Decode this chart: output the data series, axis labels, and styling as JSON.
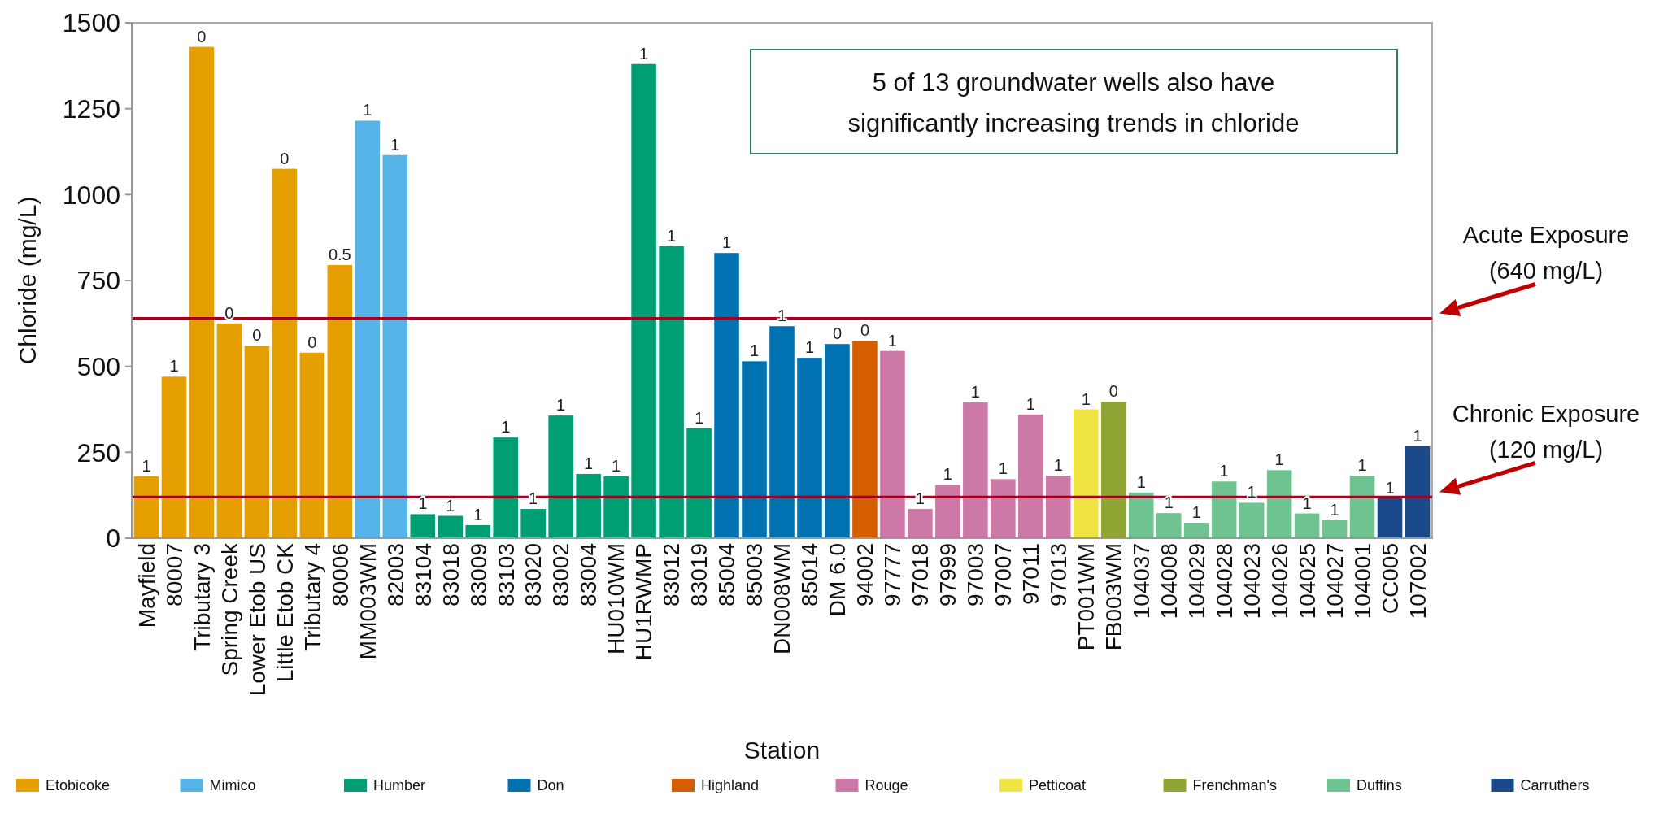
{
  "chart_data": {
    "type": "bar",
    "xlabel": "Station",
    "ylabel": "Chloride (mg/L)",
    "categories": [
      "Mayfield",
      "80007",
      "Tributary 3",
      "Spring Creek",
      "Lower Etob US",
      "Little Etob CK",
      "Tributary 4",
      "80006",
      "MM003WM",
      "82003",
      "83104",
      "83018",
      "83009",
      "83103",
      "83020",
      "83002",
      "83004",
      "HU010WM",
      "HU1RWMP",
      "83012",
      "83019",
      "85004",
      "85003",
      "DN008WM",
      "85014",
      "DM 6.0",
      "94002",
      "97777",
      "97018",
      "97999",
      "97003",
      "97007",
      "97011",
      "97013",
      "PT001WM",
      "FB003WM",
      "104037",
      "104008",
      "104029",
      "104028",
      "104023",
      "104026",
      "104025",
      "104027",
      "104001",
      "CC005",
      "107002"
    ],
    "series": [
      {
        "name": "Etobicoke",
        "color": "#e69f00",
        "values": [
          180,
          470,
          1430,
          625,
          560,
          1075,
          540,
          795,
          null,
          null,
          null,
          null,
          null,
          null,
          null,
          null,
          null,
          null,
          null,
          null,
          null,
          null,
          null,
          null,
          null,
          null,
          null,
          null,
          null,
          null,
          null,
          null,
          null,
          null,
          null,
          null,
          null,
          null,
          null,
          null,
          null,
          null,
          null,
          null,
          null,
          null,
          null
        ]
      },
      {
        "name": "Mimico",
        "color": "#56b4e9",
        "values": [
          null,
          null,
          null,
          null,
          null,
          null,
          null,
          null,
          1215,
          1115,
          null,
          null,
          null,
          null,
          null,
          null,
          null,
          null,
          null,
          null,
          null,
          null,
          null,
          null,
          null,
          null,
          null,
          null,
          null,
          null,
          null,
          null,
          null,
          null,
          null,
          null,
          null,
          null,
          null,
          null,
          null,
          null,
          null,
          null,
          null,
          null,
          null
        ]
      },
      {
        "name": "Humber",
        "color": "#009e73",
        "values": [
          null,
          null,
          null,
          null,
          null,
          null,
          null,
          null,
          null,
          null,
          70,
          65,
          38,
          293,
          85,
          357,
          187,
          180,
          1380,
          850,
          320,
          null,
          null,
          null,
          null,
          null,
          null,
          null,
          null,
          null,
          null,
          null,
          null,
          null,
          null,
          null,
          null,
          null,
          null,
          null,
          null,
          null,
          null,
          null,
          null,
          null,
          null
        ]
      },
      {
        "name": "Don",
        "color": "#0072b2",
        "values": [
          null,
          null,
          null,
          null,
          null,
          null,
          null,
          null,
          null,
          null,
          null,
          null,
          null,
          null,
          null,
          null,
          null,
          null,
          null,
          null,
          null,
          830,
          515,
          617,
          525,
          565,
          null,
          null,
          null,
          null,
          null,
          null,
          null,
          null,
          null,
          null,
          null,
          null,
          null,
          null,
          null,
          null,
          null,
          null,
          null,
          null,
          null
        ]
      },
      {
        "name": "Highland",
        "color": "#d55e00",
        "values": [
          null,
          null,
          null,
          null,
          null,
          null,
          null,
          null,
          null,
          null,
          null,
          null,
          null,
          null,
          null,
          null,
          null,
          null,
          null,
          null,
          null,
          null,
          null,
          null,
          null,
          null,
          575,
          null,
          null,
          null,
          null,
          null,
          null,
          null,
          null,
          null,
          null,
          null,
          null,
          null,
          null,
          null,
          null,
          null,
          null,
          null,
          null
        ]
      },
      {
        "name": "Rouge",
        "color": "#cc79a7",
        "values": [
          null,
          null,
          null,
          null,
          null,
          null,
          null,
          null,
          null,
          null,
          null,
          null,
          null,
          null,
          null,
          null,
          null,
          null,
          null,
          null,
          null,
          null,
          null,
          null,
          null,
          null,
          null,
          545,
          85,
          155,
          395,
          172,
          360,
          182,
          null,
          null,
          null,
          null,
          null,
          null,
          null,
          null,
          null,
          null,
          null,
          null,
          null
        ]
      },
      {
        "name": "Petticoat",
        "color": "#f0e442",
        "values": [
          null,
          null,
          null,
          null,
          null,
          null,
          null,
          null,
          null,
          null,
          null,
          null,
          null,
          null,
          null,
          null,
          null,
          null,
          null,
          null,
          null,
          null,
          null,
          null,
          null,
          null,
          null,
          null,
          null,
          null,
          null,
          null,
          null,
          null,
          375,
          null,
          null,
          null,
          null,
          null,
          null,
          null,
          null,
          null,
          null,
          null,
          null
        ]
      },
      {
        "name": "Frenchman's",
        "color": "#8fa634",
        "values": [
          null,
          null,
          null,
          null,
          null,
          null,
          null,
          null,
          null,
          null,
          null,
          null,
          null,
          null,
          null,
          null,
          null,
          null,
          null,
          null,
          null,
          null,
          null,
          null,
          null,
          null,
          null,
          null,
          null,
          null,
          null,
          null,
          null,
          null,
          null,
          397,
          null,
          null,
          null,
          null,
          null,
          null,
          null,
          null,
          null,
          null,
          null
        ]
      },
      {
        "name": "Duffins",
        "color": "#6fc390",
        "values": [
          null,
          null,
          null,
          null,
          null,
          null,
          null,
          null,
          null,
          null,
          null,
          null,
          null,
          null,
          null,
          null,
          null,
          null,
          null,
          null,
          null,
          null,
          null,
          null,
          null,
          null,
          null,
          null,
          null,
          null,
          null,
          null,
          null,
          null,
          null,
          null,
          133,
          73,
          45,
          165,
          103,
          198,
          72,
          52,
          182,
          null,
          null
        ]
      },
      {
        "name": "Carruthers",
        "color": "#1a4a8a",
        "values": [
          null,
          null,
          null,
          null,
          null,
          null,
          null,
          null,
          null,
          null,
          null,
          null,
          null,
          null,
          null,
          null,
          null,
          null,
          null,
          null,
          null,
          null,
          null,
          null,
          null,
          null,
          null,
          null,
          null,
          null,
          null,
          null,
          null,
          null,
          null,
          null,
          null,
          null,
          null,
          null,
          null,
          null,
          null,
          null,
          null,
          117,
          268
        ]
      }
    ],
    "ylim": [
      0,
      1500
    ],
    "yticks": [
      0,
      250,
      500,
      750,
      1000,
      1250,
      1500
    ],
    "ref_lines": [
      {
        "axis": "y",
        "value": 640,
        "label": "Acute Exposure (640 mg/L)",
        "color": "#a50021"
      },
      {
        "axis": "y",
        "value": 120,
        "label": "Chronic Exposure (120 mg/L)",
        "color": "#a50021"
      }
    ],
    "annotations": [
      "5 of 13 groundwater wells also have significantly increasing trends in chloride",
      {
        "text": "1",
        "x": "Mayfield",
        "y": 180
      },
      {
        "text": "1",
        "x": "80007",
        "y": 470
      },
      {
        "text": "0",
        "x": "Tributary 3",
        "y": 1430
      },
      {
        "text": "0",
        "x": "Spring Creek",
        "y": 625
      },
      {
        "text": "0",
        "x": "Lower Etob US",
        "y": 560
      },
      {
        "text": "0",
        "x": "Little Etob CK",
        "y": 1075
      },
      {
        "text": "0",
        "x": "Tributary 4",
        "y": 540
      },
      {
        "text": "0.5",
        "x": "80006",
        "y": 795
      },
      {
        "text": "1",
        "x": "MM003WM",
        "y": 1215
      },
      {
        "text": "1",
        "x": "82003",
        "y": 1115
      },
      {
        "text": "1",
        "x": "83104",
        "y": 70
      },
      {
        "text": "1",
        "x": "83018",
        "y": 65
      },
      {
        "text": "1",
        "x": "83009",
        "y": 38
      },
      {
        "text": "1",
        "x": "83103",
        "y": 293
      },
      {
        "text": "1",
        "x": "83020",
        "y": 85
      },
      {
        "text": "1",
        "x": "83002",
        "y": 357
      },
      {
        "text": "1",
        "x": "83004",
        "y": 187
      },
      {
        "text": "1",
        "x": "HU010WM",
        "y": 180
      },
      {
        "text": "1",
        "x": "HU1RWMP",
        "y": 1380
      },
      {
        "text": "1",
        "x": "83012",
        "y": 850
      },
      {
        "text": "1",
        "x": "83019",
        "y": 320
      },
      {
        "text": "1",
        "x": "85004",
        "y": 830
      },
      {
        "text": "1",
        "x": "85003",
        "y": 515
      },
      {
        "text": "1",
        "x": "DN008WM",
        "y": 617
      },
      {
        "text": "1",
        "x": "85014",
        "y": 525
      },
      {
        "text": "0",
        "x": "DM 6.0",
        "y": 565
      },
      {
        "text": "0",
        "x": "94002",
        "y": 575
      },
      {
        "text": "1",
        "x": "97777",
        "y": 545
      },
      {
        "text": "1",
        "x": "97018",
        "y": 85
      },
      {
        "text": "1",
        "x": "97999",
        "y": 155
      },
      {
        "text": "1",
        "x": "97003",
        "y": 395
      },
      {
        "text": "1",
        "x": "97007",
        "y": 172
      },
      {
        "text": "1",
        "x": "97011",
        "y": 360
      },
      {
        "text": "1",
        "x": "97013",
        "y": 182
      },
      {
        "text": "1",
        "x": "PT001WM",
        "y": 375
      },
      {
        "text": "0",
        "x": "FB003WM",
        "y": 397
      },
      {
        "text": "1",
        "x": "104037",
        "y": 133
      },
      {
        "text": "1",
        "x": "104008",
        "y": 73
      },
      {
        "text": "1",
        "x": "104029",
        "y": 45
      },
      {
        "text": "1",
        "x": "104028",
        "y": 165
      },
      {
        "text": "1",
        "x": "104023",
        "y": 103
      },
      {
        "text": "1",
        "x": "104026",
        "y": 198
      },
      {
        "text": "1",
        "x": "104025",
        "y": 72
      },
      {
        "text": "1",
        "x": "104027",
        "y": 52
      },
      {
        "text": "1",
        "x": "104001",
        "y": 182
      },
      {
        "text": "1",
        "x": "CC005",
        "y": 117
      },
      {
        "text": "1",
        "x": "107002",
        "y": 268
      }
    ],
    "legend": "bottom"
  }
}
